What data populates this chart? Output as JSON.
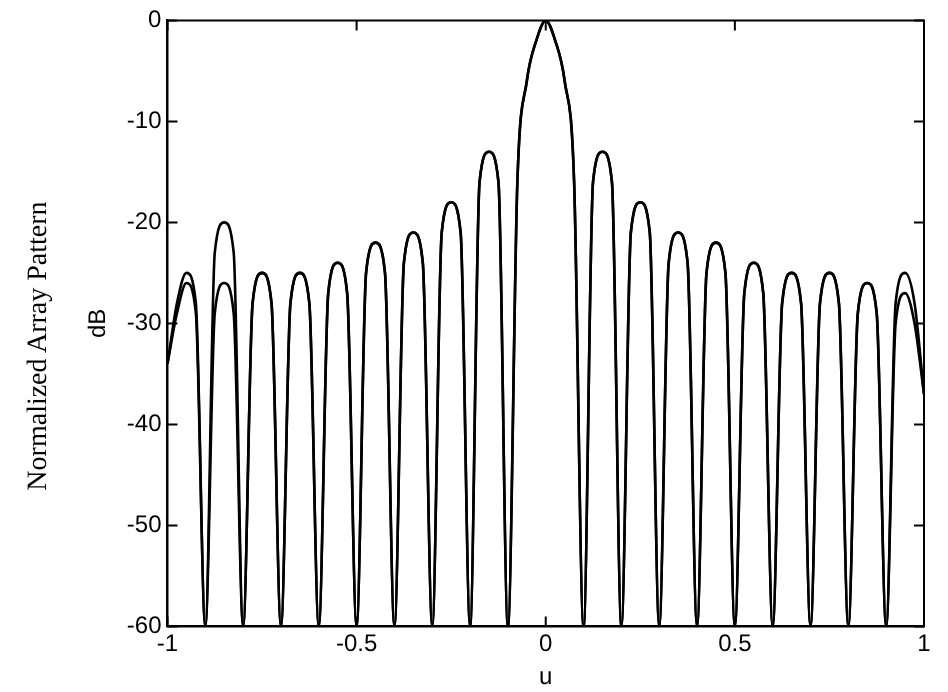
{
  "chart_data": {
    "type": "line",
    "xlabel": "u",
    "ylabel": "dB",
    "annotations": [
      "Normalized Array Pattern"
    ],
    "xlim": [
      -1,
      1
    ],
    "xticks": [
      -1,
      -0.5,
      0,
      0.5,
      1
    ],
    "ylim": [
      -60,
      0
    ],
    "yticks": [
      -60,
      -50,
      -40,
      -30,
      -20,
      -10,
      0
    ],
    "grid": false,
    "legend": false,
    "marker": "none",
    "line_style": "solid",
    "x": [
      -1,
      -0.975,
      -0.95,
      -0.925,
      -0.9,
      -0.875,
      -0.85,
      -0.825,
      -0.8,
      -0.775,
      -0.75,
      -0.725,
      -0.7,
      -0.675,
      -0.65,
      -0.625,
      -0.6,
      -0.575,
      -0.55,
      -0.525,
      -0.5,
      -0.475,
      -0.45,
      -0.425,
      -0.4,
      -0.375,
      -0.35,
      -0.325,
      -0.3,
      -0.275,
      -0.25,
      -0.225,
      -0.2,
      -0.175,
      -0.15,
      -0.125,
      -0.1,
      -0.075,
      -0.05,
      -0.025,
      0,
      0.025,
      0.05,
      0.075,
      0.1,
      0.125,
      0.15,
      0.175,
      0.2,
      0.225,
      0.25,
      0.275,
      0.3,
      0.325,
      0.35,
      0.375,
      0.4,
      0.425,
      0.45,
      0.475,
      0.5,
      0.525,
      0.55,
      0.575,
      0.6,
      0.625,
      0.65,
      0.675,
      0.7,
      0.725,
      0.75,
      0.775,
      0.8,
      0.825,
      0.85,
      0.875,
      0.9,
      0.925,
      0.95,
      0.975,
      1
    ],
    "series": [
      {
        "color": "#000000",
        "values": [
          -34,
          -28,
          -25,
          -28,
          -60,
          -23,
          -20,
          -23,
          -60,
          -28,
          -25,
          -28,
          -60,
          -28,
          -25,
          -28,
          -60,
          -27,
          -24,
          -27,
          -60,
          -25,
          -22,
          -25,
          -60,
          -24,
          -21,
          -24,
          -60,
          -21,
          -18,
          -21,
          -60,
          -16,
          -13,
          -16,
          -60,
          -16,
          -6,
          -2,
          0,
          -2,
          -6,
          -16,
          -60,
          -16,
          -13,
          -16,
          -60,
          -21,
          -18,
          -21,
          -60,
          -24,
          -21,
          -24,
          -60,
          -25,
          -22,
          -25,
          -60,
          -27,
          -24,
          -27,
          -60,
          -28,
          -25,
          -28,
          -60,
          -28,
          -25,
          -28,
          -60,
          -29,
          -26,
          -29,
          -60,
          -28,
          -25,
          -28,
          -37
        ]
      },
      {
        "color": "#000000",
        "values": [
          -34,
          -29,
          -26,
          -29,
          -60,
          -29,
          -26,
          -29,
          -60,
          -28,
          -25,
          -28,
          -60,
          -28,
          -25,
          -28,
          -60,
          -27,
          -24,
          -27,
          -60,
          -25,
          -22,
          -25,
          -60,
          -24,
          -21,
          -24,
          -60,
          -21,
          -18,
          -21,
          -60,
          -16,
          -13,
          -16,
          -60,
          -16,
          -6,
          -2,
          0,
          -2,
          -6,
          -16,
          -60,
          -16,
          -13,
          -16,
          -60,
          -21,
          -18,
          -21,
          -60,
          -24,
          -21,
          -24,
          -60,
          -25,
          -22,
          -25,
          -60,
          -27,
          -24,
          -27,
          -60,
          -28,
          -25,
          -28,
          -60,
          -28,
          -25,
          -28,
          -60,
          -29,
          -26,
          -29,
          -60,
          -30,
          -27,
          -30,
          -37
        ]
      }
    ]
  }
}
